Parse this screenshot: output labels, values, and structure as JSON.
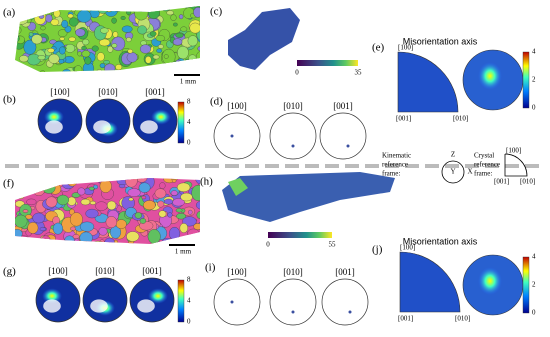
{
  "top": {
    "a": {
      "label": "(a)",
      "scale": "1 mm"
    },
    "b": {
      "label": "(b)",
      "poles": [
        "[100]",
        "[010]",
        "[001]"
      ],
      "colorbar": [
        8,
        4,
        0
      ]
    },
    "c": {
      "label": "(c)",
      "colorbar": [
        0,
        35
      ]
    },
    "d": {
      "label": "(d)",
      "poles": [
        "[100]",
        "[010]",
        "[001]"
      ]
    },
    "e": {
      "label": "(e)",
      "title": "Misorientation axis",
      "axes": [
        "[100]",
        "[001]",
        "[010]"
      ],
      "colorbar": [
        4,
        2,
        0
      ]
    }
  },
  "frames": {
    "kinematic": {
      "lines": [
        "Kinematic",
        "reference",
        "frame:"
      ],
      "axes": [
        "Z",
        "Y",
        "X"
      ]
    },
    "crystal": {
      "lines": [
        "Crystal",
        "reference",
        "frame:"
      ],
      "axes": [
        "[100]",
        "[001]",
        "[010]"
      ]
    }
  },
  "bottom": {
    "f": {
      "label": "(f)",
      "scale": "1 mm"
    },
    "g": {
      "label": "(g)",
      "poles": [
        "[100]",
        "[010]",
        "[001]"
      ],
      "colorbar": [
        8,
        4,
        0
      ]
    },
    "h": {
      "label": "(h)",
      "colorbar": [
        0,
        55
      ]
    },
    "i": {
      "label": "(i)",
      "poles": [
        "[100]",
        "[010]",
        "[001]"
      ]
    },
    "j": {
      "label": "(j)",
      "title": "Misorientation axis",
      "axes": [
        "[100]",
        "[001]",
        "[010]"
      ],
      "colorbar": [
        4,
        2,
        0
      ]
    }
  }
}
